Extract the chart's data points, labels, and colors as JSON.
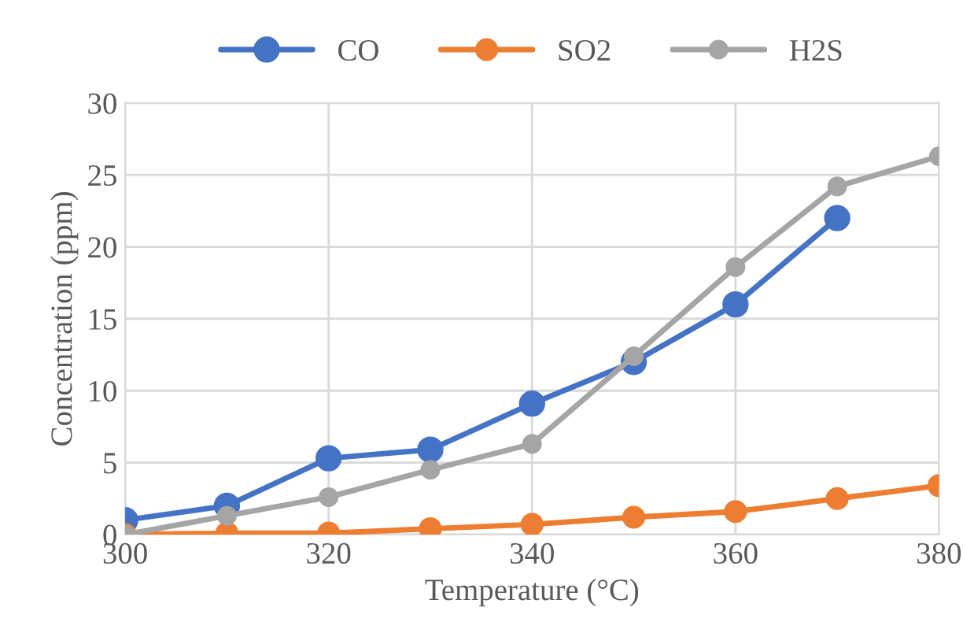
{
  "chart_data": {
    "type": "line",
    "xlabel": "Temperature (°C)",
    "ylabel": "Concentration (ppm)",
    "x": [
      300,
      310,
      320,
      330,
      340,
      350,
      360,
      370,
      380
    ],
    "series": [
      {
        "name": "CO",
        "color": "#4472c4",
        "values": [
          1.0,
          2.0,
          5.3,
          5.9,
          9.1,
          12.0,
          16.0,
          22.0,
          null
        ]
      },
      {
        "name": "SO2",
        "color": "#ed7d31",
        "values": [
          0,
          0.1,
          0.1,
          0.4,
          0.7,
          1.2,
          1.6,
          2.5,
          3.4
        ]
      },
      {
        "name": "H2S",
        "color": "#a5a5a5",
        "values": [
          0,
          1.3,
          2.6,
          4.5,
          6.3,
          12.4,
          18.6,
          24.2,
          26.3
        ]
      }
    ],
    "xlim": [
      300,
      380
    ],
    "xticks": [
      300,
      320,
      340,
      360,
      380
    ],
    "ylim": [
      0,
      30
    ],
    "yticks": [
      0,
      5,
      10,
      15,
      20,
      25,
      30
    ],
    "grid": true,
    "legend": "top",
    "marker": "circle",
    "line_style": "solid"
  }
}
